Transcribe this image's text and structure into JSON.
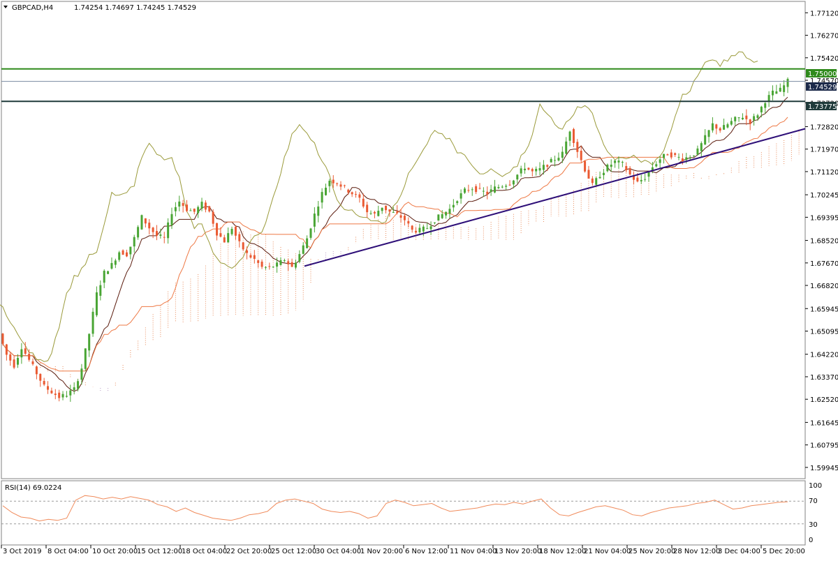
{
  "header": {
    "symbol": "GBPCAD,H4",
    "ohlc": "1.74254 1.74697 1.74245 1.74529"
  },
  "rsi_panel": {
    "label": "RSI(14) 69.0224",
    "levels": [
      "100",
      "70",
      "30",
      "0"
    ]
  },
  "price_labels": {
    "resistance": "1.75000",
    "current": "1.74529",
    "support": "1.73775"
  },
  "colors": {
    "bull": "#49a534",
    "bear": "#ea5a32",
    "tenkan": "#5a1a0c",
    "kijun": "#ee7844",
    "chikou": "#9a9a3a",
    "span_a": "#e88a5a",
    "span_b": "#b89ac4",
    "resistance_line": "#2f8a1c",
    "support_line": "#1f3a3a",
    "trendline": "#2e0f78",
    "rsi": "#f08a5a",
    "grid": "#dadada"
  },
  "chart_data": [
    {
      "type": "candlestick",
      "title": "GBPCAD,H4",
      "ylim": [
        1.5952,
        1.7755
      ],
      "y_ticks": [
        "1.77120",
        "1.76270",
        "1.75420",
        "1.74570",
        "1.73720",
        "1.72820",
        "1.71970",
        "1.71120",
        "1.70245",
        "1.69395",
        "1.68520",
        "1.67670",
        "1.66820",
        "1.65945",
        "1.65095",
        "1.64220",
        "1.63370",
        "1.62520",
        "1.61645",
        "1.60795",
        "1.59945"
      ],
      "x_ticks": [
        "3 Oct 2019",
        "8 Oct 04:00",
        "10 Oct 20:00",
        "15 Oct 12:00",
        "18 Oct 04:00",
        "22 Oct 20:00",
        "25 Oct 12:00",
        "30 Oct 04:00",
        "1 Nov 20:00",
        "6 Nov 12:00",
        "11 Nov 04:00",
        "13 Nov 20:00",
        "18 Nov 12:00",
        "21 Nov 04:00",
        "25 Nov 20:00",
        "28 Nov 12:00",
        "3 Dec 04:00",
        "5 Dec 20:00"
      ],
      "price_path": [
        1.65,
        1.642,
        1.638,
        1.645,
        1.64,
        1.635,
        1.63,
        1.628,
        1.626,
        1.627,
        1.629,
        1.637,
        1.65,
        1.665,
        1.673,
        1.676,
        1.681,
        1.68,
        1.686,
        1.694,
        1.69,
        1.687,
        1.686,
        1.696,
        1.7,
        1.697,
        1.696,
        1.699,
        1.696,
        1.688,
        1.685,
        1.69,
        1.684,
        1.68,
        1.678,
        1.675,
        1.675,
        1.676,
        1.678,
        1.675,
        1.68,
        1.686,
        1.695,
        1.703,
        1.708,
        1.707,
        1.705,
        1.703,
        1.701,
        1.696,
        1.695,
        1.698,
        1.696,
        1.695,
        1.693,
        1.689,
        1.689,
        1.69,
        1.693,
        1.695,
        1.697,
        1.701,
        1.704,
        1.705,
        1.704,
        1.703,
        1.705,
        1.706,
        1.707,
        1.71,
        1.713,
        1.711,
        1.712,
        1.714,
        1.716,
        1.718,
        1.727,
        1.719,
        1.712,
        1.706,
        1.71,
        1.713,
        1.715,
        1.714,
        1.71,
        1.707,
        1.709,
        1.713,
        1.716,
        1.718,
        1.717,
        1.716,
        1.717,
        1.719,
        1.724,
        1.729,
        1.727,
        1.729,
        1.731,
        1.732,
        1.73,
        1.733,
        1.738,
        1.741,
        1.742,
        1.7453
      ],
      "horizontal_levels": [
        1.75,
        1.74529,
        1.73775
      ],
      "trendline": {
        "from": [
          1.6755
        ],
        "to": [
          1.7274
        ]
      }
    },
    {
      "type": "line",
      "title": "RSI(14) 69.0224",
      "ylim": [
        0,
        100
      ],
      "levels": [
        70,
        30
      ],
      "values": [
        62,
        50,
        42,
        40,
        35,
        38,
        36,
        40,
        72,
        80,
        78,
        74,
        77,
        74,
        78,
        75,
        72,
        64,
        60,
        52,
        58,
        50,
        45,
        40,
        38,
        36,
        40,
        46,
        48,
        52,
        66,
        72,
        74,
        70,
        66,
        56,
        52,
        50,
        52,
        48,
        40,
        44,
        66,
        72,
        68,
        62,
        64,
        66,
        58,
        52,
        54,
        56,
        58,
        62,
        65,
        64,
        68,
        65,
        70,
        74,
        58,
        46,
        44,
        50,
        55,
        60,
        62,
        58,
        54,
        46,
        44,
        50,
        54,
        58,
        60,
        62,
        66,
        68,
        72,
        64,
        56,
        58,
        62,
        64,
        66,
        68,
        69
      ]
    }
  ]
}
